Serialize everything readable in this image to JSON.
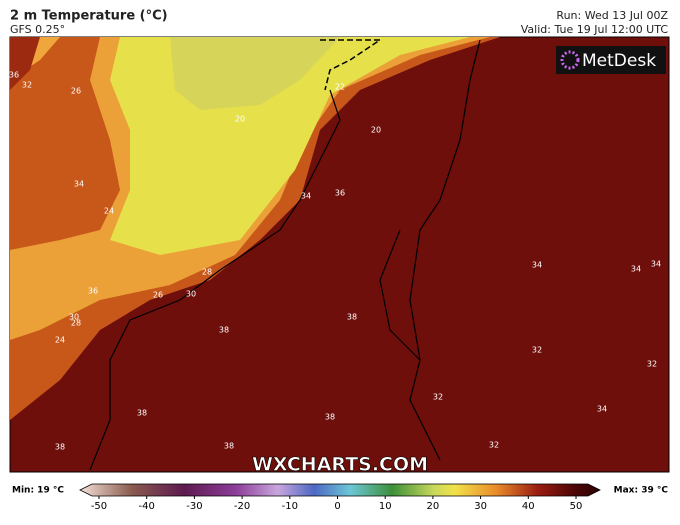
{
  "header": {
    "title": "2 m Temperature (°C)",
    "subtitle": "GFS 0.25°",
    "run": "Run: Wed 13 Jul 00Z",
    "valid": "Valid: Tue 19 Jul 12:00 UTC"
  },
  "logo": "MetDesk",
  "watermark": "WXCHARTS.COM",
  "contour_labels": [
    36,
    32,
    26,
    20,
    22,
    20,
    34,
    24,
    34,
    36,
    36,
    28,
    26,
    30,
    30,
    28,
    38,
    38,
    24,
    34,
    34,
    34,
    32,
    32,
    32,
    34,
    38,
    38,
    38,
    38,
    32
  ],
  "colorbar": {
    "min_label": "Min: 19 °C",
    "max_label": "Max: 39 °C",
    "ticks": [
      -50,
      -40,
      -30,
      -20,
      -10,
      0,
      10,
      20,
      30,
      40,
      50
    ]
  }
}
